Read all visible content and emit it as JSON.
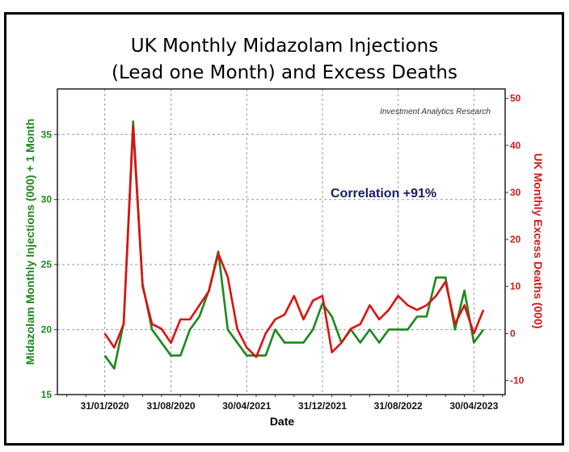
{
  "chart_data": {
    "type": "line",
    "title_lines": [
      "UK Monthly Midazolam Injections",
      "(Lead one Month) and Excess Deaths"
    ],
    "xlabel": "Date",
    "ylabel_left": "Midazolam Monthly Injections (000) + 1 Month",
    "ylabel_right": "UK Monthly Excess Deaths (000)",
    "credit": "Investment Analytics Research",
    "annotation": "Correlation +91%",
    "x_tick_labels": [
      "31/01/2020",
      "31/08/2020",
      "30/04/2021",
      "31/12/2021",
      "31/08/2022",
      "30/04/2023"
    ],
    "x_tick_month_index": [
      0,
      7,
      15,
      23,
      31,
      39
    ],
    "y_left_ticks": [
      15,
      20,
      25,
      30,
      35
    ],
    "y_left_range": [
      15,
      38.5
    ],
    "y_right_ticks": [
      -10,
      0,
      10,
      20,
      30,
      40,
      50
    ],
    "y_right_range": [
      -13,
      52
    ],
    "x_months": [
      "2020-01",
      "2020-02",
      "2020-03",
      "2020-04",
      "2020-05",
      "2020-06",
      "2020-07",
      "2020-08",
      "2020-09",
      "2020-10",
      "2020-11",
      "2020-12",
      "2021-01",
      "2021-02",
      "2021-03",
      "2021-04",
      "2021-05",
      "2021-06",
      "2021-07",
      "2021-08",
      "2021-09",
      "2021-10",
      "2021-11",
      "2021-12",
      "2022-01",
      "2022-02",
      "2022-03",
      "2022-04",
      "2022-05",
      "2022-06",
      "2022-07",
      "2022-08",
      "2022-09",
      "2022-10",
      "2022-11",
      "2022-12",
      "2023-01",
      "2023-02",
      "2023-03",
      "2023-04",
      "2023-05"
    ],
    "x_range_months": [
      -5,
      42.3
    ],
    "grid": true,
    "series": [
      {
        "name": "Midazolam Monthly Injections (000) + 1 Month",
        "axis": "left",
        "color": "#1a8a1a",
        "values": [
          18,
          17,
          20.5,
          36,
          23.5,
          20,
          19,
          18,
          18,
          20,
          21,
          23,
          26,
          20,
          19,
          18,
          18,
          18,
          20,
          19,
          19,
          19,
          20,
          22,
          21,
          19,
          20,
          19,
          20,
          19,
          20,
          20,
          20,
          21,
          21,
          24,
          24,
          20,
          23,
          19,
          20
        ]
      },
      {
        "name": "UK Monthly Excess Deaths (000)",
        "axis": "right",
        "color": "#dd1111",
        "values": [
          0,
          -3,
          2,
          44,
          10,
          2,
          1,
          -2,
          3,
          3,
          6,
          9,
          17,
          12,
          1,
          -3,
          -5,
          0,
          3,
          4,
          8,
          3,
          7,
          8,
          -4,
          -2,
          1,
          2,
          6,
          3,
          5,
          8,
          6,
          5,
          6,
          8,
          11,
          2,
          6,
          0,
          5
        ]
      }
    ],
    "colors": {
      "left_axis": "#1a8a1a",
      "right_axis": "#d11a1a",
      "grid": "#999999"
    }
  }
}
